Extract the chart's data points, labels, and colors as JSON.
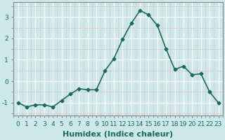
{
  "x": [
    0,
    1,
    2,
    3,
    4,
    5,
    6,
    7,
    8,
    9,
    10,
    11,
    12,
    13,
    14,
    15,
    16,
    17,
    18,
    19,
    20,
    21,
    22,
    23
  ],
  "y": [
    -1.0,
    -1.2,
    -1.1,
    -1.1,
    -1.2,
    -0.9,
    -0.6,
    -0.35,
    -0.4,
    -0.4,
    0.5,
    1.05,
    1.95,
    2.7,
    3.3,
    3.1,
    2.6,
    1.5,
    0.55,
    0.7,
    0.3,
    0.35,
    -0.5,
    -1.0
  ],
  "xlabel": "Humidex (Indice chaleur)",
  "yticks": [
    -1,
    0,
    1,
    2,
    3
  ],
  "xticks": [
    0,
    1,
    2,
    3,
    4,
    5,
    6,
    7,
    8,
    9,
    10,
    11,
    12,
    13,
    14,
    15,
    16,
    17,
    18,
    19,
    20,
    21,
    22,
    23
  ],
  "ylim": [
    -1.6,
    3.7
  ],
  "xlim": [
    -0.5,
    23.5
  ],
  "line_color": "#1a6b5a",
  "marker": "D",
  "marker_size": 2.5,
  "bg_color": "#cce8ea",
  "grid_major_color": "#ffffff",
  "grid_minor_color": "#ddc8c8",
  "xlabel_fontsize": 8,
  "tick_fontsize": 6.5,
  "line_width": 1.2
}
